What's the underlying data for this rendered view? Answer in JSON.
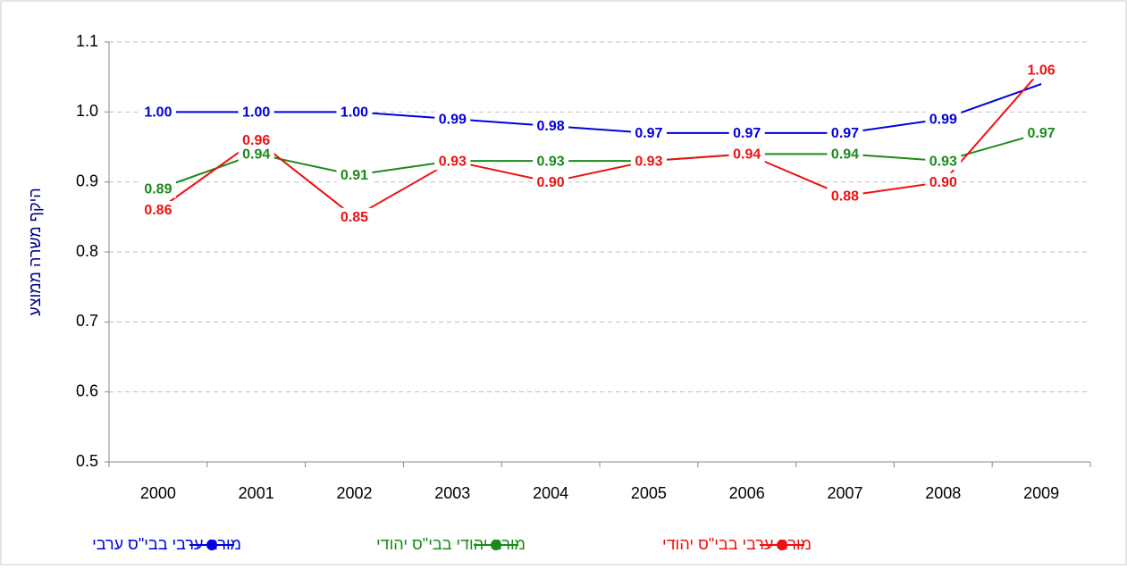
{
  "chart_data": {
    "type": "line",
    "y_label": "היקף משרה ממוצע",
    "categories": [
      "2000",
      "2001",
      "2002",
      "2003",
      "2004",
      "2005",
      "2006",
      "2007",
      "2008",
      "2009"
    ],
    "series": [
      {
        "name": "מורה ערבי בבי\"ס ערבי",
        "color": "#0000e0",
        "values": [
          1.0,
          1.0,
          1.0,
          0.99,
          0.98,
          0.97,
          0.97,
          0.97,
          0.99,
          1.04
        ],
        "value_labels": [
          "1.00",
          "1.00",
          "1.00",
          "0.99",
          "0.98",
          "0.97",
          "0.97",
          "0.97",
          "0.99",
          null
        ]
      },
      {
        "name": "מורה יהודי בבי\"ס יהודי",
        "color": "#1a8a1a",
        "values": [
          0.89,
          0.94,
          0.91,
          0.93,
          0.93,
          0.93,
          0.94,
          0.94,
          0.93,
          0.97
        ],
        "value_labels": [
          "0.89",
          "0.94",
          "0.91",
          "0.93",
          "0.93",
          "0.93",
          "0.94",
          "0.94",
          "0.93",
          "0.97"
        ]
      },
      {
        "name": "מורה ערבי בבי\"ס יהודי",
        "color": "#ee1111",
        "values": [
          0.86,
          0.96,
          0.85,
          0.93,
          0.9,
          0.93,
          0.94,
          0.88,
          0.9,
          1.06
        ],
        "value_labels": [
          "0.86",
          "0.96",
          "0.85",
          "0.93",
          "0.90",
          "0.93",
          "0.94",
          "0.88",
          "0.90",
          "1.06"
        ]
      }
    ],
    "ylim": [
      0.5,
      1.1
    ],
    "yticks": [
      0.5,
      0.6,
      0.7,
      0.8,
      0.9,
      {
        "value": 1.0,
        "label": "1.0"
      },
      1.1
    ],
    "grid": true,
    "legend": "bottom"
  }
}
